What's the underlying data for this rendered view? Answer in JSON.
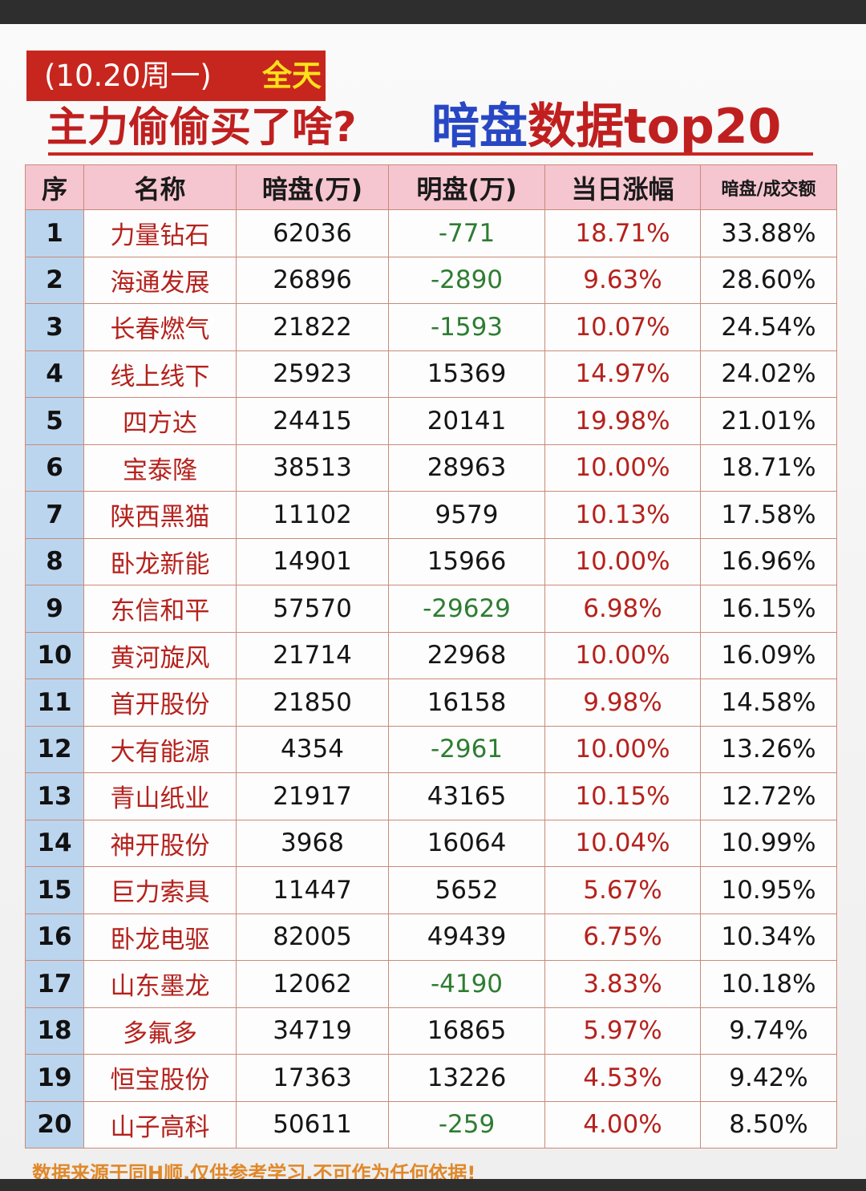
{
  "header": {
    "date_label": "(10.20周一)",
    "period_label": "全天",
    "title_left": "主力偷偷买了啥?",
    "title_blue": "暗盘",
    "title_red": "数据top20"
  },
  "table": {
    "columns": [
      "序",
      "名称",
      "暗盘(万)",
      "明盘(万)",
      "当日涨幅",
      "暗盘/成交额"
    ],
    "rows": [
      [
        "1",
        "力量钻石",
        "62036",
        "-771",
        "18.71%",
        "33.88%"
      ],
      [
        "2",
        "海通发展",
        "26896",
        "-2890",
        "9.63%",
        "28.60%"
      ],
      [
        "3",
        "长春燃气",
        "21822",
        "-1593",
        "10.07%",
        "24.54%"
      ],
      [
        "4",
        "线上线下",
        "25923",
        "15369",
        "14.97%",
        "24.02%"
      ],
      [
        "5",
        "四方达",
        "24415",
        "20141",
        "19.98%",
        "21.01%"
      ],
      [
        "6",
        "宝泰隆",
        "38513",
        "28963",
        "10.00%",
        "18.71%"
      ],
      [
        "7",
        "陕西黑猫",
        "11102",
        "9579",
        "10.13%",
        "17.58%"
      ],
      [
        "8",
        "卧龙新能",
        "14901",
        "15966",
        "10.00%",
        "16.96%"
      ],
      [
        "9",
        "东信和平",
        "57570",
        "-29629",
        "6.98%",
        "16.15%"
      ],
      [
        "10",
        "黄河旋风",
        "21714",
        "22968",
        "10.00%",
        "16.09%"
      ],
      [
        "11",
        "首开股份",
        "21850",
        "16158",
        "9.98%",
        "14.58%"
      ],
      [
        "12",
        "大有能源",
        "4354",
        "-2961",
        "10.00%",
        "13.26%"
      ],
      [
        "13",
        "青山纸业",
        "21917",
        "43165",
        "10.15%",
        "12.72%"
      ],
      [
        "14",
        "神开股份",
        "3968",
        "16064",
        "10.04%",
        "10.99%"
      ],
      [
        "15",
        "巨力索具",
        "11447",
        "5652",
        "5.67%",
        "10.95%"
      ],
      [
        "16",
        "卧龙电驱",
        "82005",
        "49439",
        "6.75%",
        "10.34%"
      ],
      [
        "17",
        "山东墨龙",
        "12062",
        "-4190",
        "3.83%",
        "10.18%"
      ],
      [
        "18",
        "多氟多",
        "34719",
        "16865",
        "5.97%",
        "9.74%"
      ],
      [
        "19",
        "恒宝股份",
        "17363",
        "13226",
        "4.53%",
        "9.42%"
      ],
      [
        "20",
        "山子高科",
        "50611",
        "-259",
        "4.00%",
        "8.50%"
      ]
    ]
  },
  "footer": {
    "disclaimer": "数据来源于同H顺,仅供参考学习,不可作为任何依据!"
  },
  "colors": {
    "header_red": "#c7261e",
    "accent_yellow": "#ffe11a",
    "title_blue": "#2747c4",
    "name_red": "#b5221d",
    "negative_green": "#2e7d32",
    "header_row_pink": "#f5c5d0",
    "index_cell_blue": "#bcd5ee",
    "footer_orange": "#e0882a"
  }
}
